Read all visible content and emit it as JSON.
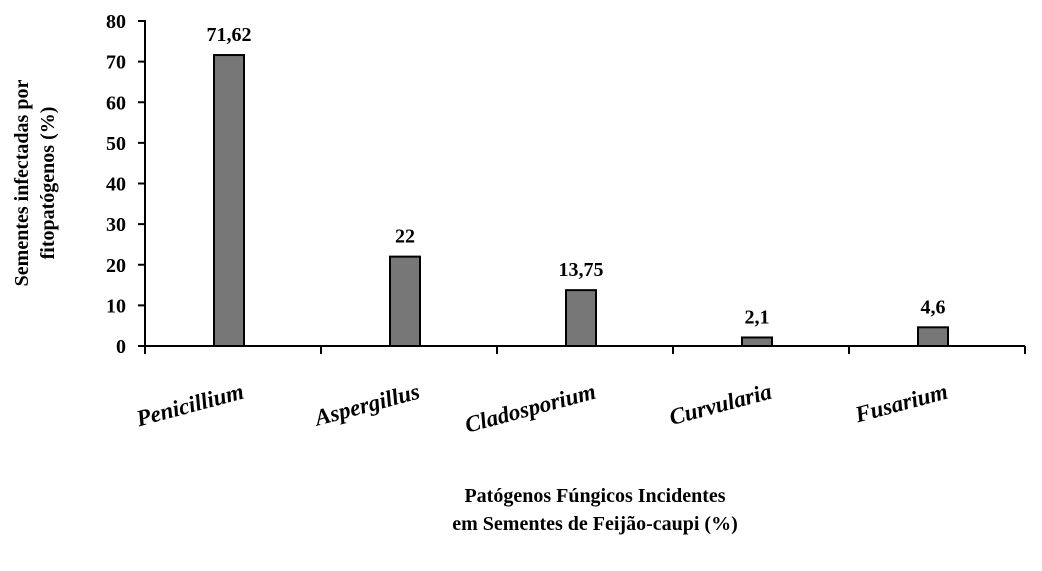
{
  "chart_data": {
    "type": "bar",
    "ylabel": [
      "Sementes infectadas por",
      "fitopatógenos (%)"
    ],
    "xlabel": [
      "Patógenos Fúngicos Incidentes",
      "em Sementes de Feijão-caupi (%)"
    ],
    "categories": [
      "Penicillium",
      "Aspergillus",
      "Cladosporium",
      "Curvularia",
      "Fusarium"
    ],
    "values": [
      71.62,
      22,
      13.75,
      2.1,
      4.6
    ],
    "value_labels": [
      "71,62",
      "22",
      "13,75",
      "2,1",
      "4,6"
    ],
    "color": "#777777",
    "ylim": [
      0,
      80
    ],
    "yticks": [
      0,
      10,
      20,
      30,
      40,
      50,
      60,
      70,
      80
    ]
  }
}
